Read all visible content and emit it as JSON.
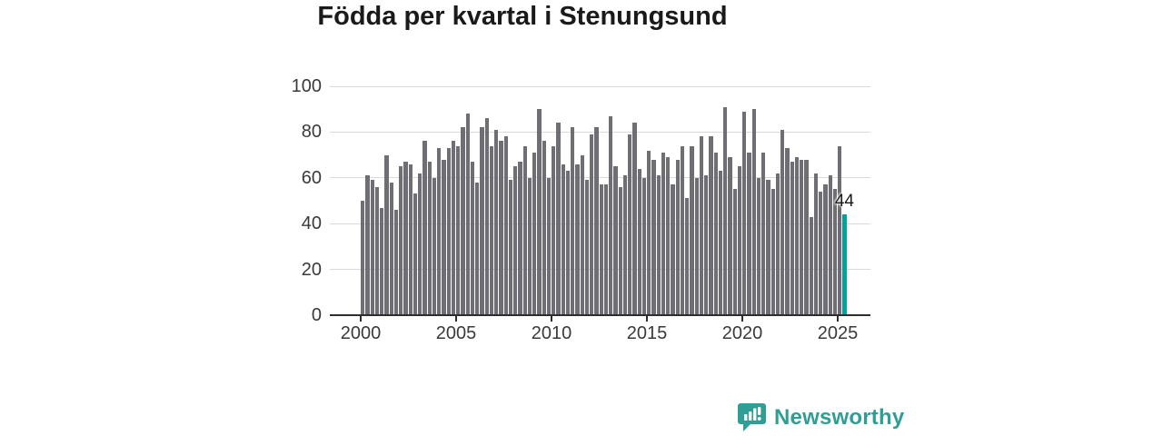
{
  "title": "Födda per kvartal i Stenungsund",
  "annotation": {
    "label": "44"
  },
  "footer": {
    "brand": "Newsworthy",
    "brand_color": "#2f9f96",
    "logo_icon": "bar-chart-speech-bubble-icon"
  },
  "chart_data": {
    "type": "bar",
    "title": "Födda per kvartal i Stenungsund",
    "xlabel": "",
    "ylabel": "",
    "ylim": [
      0,
      100
    ],
    "grid": true,
    "legend": false,
    "x_tick_labels": [
      "2000",
      "2005",
      "2010",
      "2015",
      "2020",
      "2025"
    ],
    "y_tick_labels": [
      0,
      20,
      40,
      60,
      80,
      100
    ],
    "bar_color": "#6e6e74",
    "highlight_color": "#00a29b",
    "highlight_index": 101,
    "highlight_value_label": "44",
    "categories": [
      "2000 Q1",
      "2000 Q2",
      "2000 Q3",
      "2000 Q4",
      "2001 Q1",
      "2001 Q2",
      "2001 Q3",
      "2001 Q4",
      "2002 Q1",
      "2002 Q2",
      "2002 Q3",
      "2002 Q4",
      "2003 Q1",
      "2003 Q2",
      "2003 Q3",
      "2003 Q4",
      "2004 Q1",
      "2004 Q2",
      "2004 Q3",
      "2004 Q4",
      "2005 Q1",
      "2005 Q2",
      "2005 Q3",
      "2005 Q4",
      "2006 Q1",
      "2006 Q2",
      "2006 Q3",
      "2006 Q4",
      "2007 Q1",
      "2007 Q2",
      "2007 Q3",
      "2007 Q4",
      "2008 Q1",
      "2008 Q2",
      "2008 Q3",
      "2008 Q4",
      "2009 Q1",
      "2009 Q2",
      "2009 Q3",
      "2009 Q4",
      "2010 Q1",
      "2010 Q2",
      "2010 Q3",
      "2010 Q4",
      "2011 Q1",
      "2011 Q2",
      "2011 Q3",
      "2011 Q4",
      "2012 Q1",
      "2012 Q2",
      "2012 Q3",
      "2012 Q4",
      "2013 Q1",
      "2013 Q2",
      "2013 Q3",
      "2013 Q4",
      "2014 Q1",
      "2014 Q2",
      "2014 Q3",
      "2014 Q4",
      "2015 Q1",
      "2015 Q2",
      "2015 Q3",
      "2015 Q4",
      "2016 Q1",
      "2016 Q2",
      "2016 Q3",
      "2016 Q4",
      "2017 Q1",
      "2017 Q2",
      "2017 Q3",
      "2017 Q4",
      "2018 Q1",
      "2018 Q2",
      "2018 Q3",
      "2018 Q4",
      "2019 Q1",
      "2019 Q2",
      "2019 Q3",
      "2019 Q4",
      "2020 Q1",
      "2020 Q2",
      "2020 Q3",
      "2020 Q4",
      "2021 Q1",
      "2021 Q2",
      "2021 Q3",
      "2021 Q4",
      "2022 Q1",
      "2022 Q2",
      "2022 Q3",
      "2022 Q4",
      "2023 Q1",
      "2023 Q2",
      "2023 Q3",
      "2023 Q4",
      "2024 Q1",
      "2024 Q2",
      "2024 Q3",
      "2024 Q4",
      "2025 Q1",
      "2025 Q2"
    ],
    "values": [
      50,
      61,
      59,
      56,
      47,
      70,
      58,
      46,
      65,
      67,
      66,
      53,
      62,
      76,
      67,
      60,
      73,
      68,
      73,
      76,
      74,
      82,
      88,
      67,
      58,
      82,
      86,
      74,
      81,
      76,
      78,
      59,
      65,
      67,
      74,
      60,
      71,
      90,
      76,
      60,
      74,
      84,
      66,
      63,
      82,
      66,
      70,
      59,
      79,
      82,
      57,
      57,
      87,
      65,
      56,
      61,
      79,
      84,
      64,
      60,
      72,
      68,
      61,
      71,
      69,
      57,
      68,
      74,
      51,
      74,
      60,
      78,
      61,
      78,
      71,
      63,
      91,
      69,
      55,
      65,
      89,
      71,
      90,
      60,
      71,
      59,
      55,
      62,
      81,
      73,
      67,
      69,
      68,
      68,
      43,
      62,
      54,
      57,
      61,
      55,
      74,
      44
    ]
  }
}
